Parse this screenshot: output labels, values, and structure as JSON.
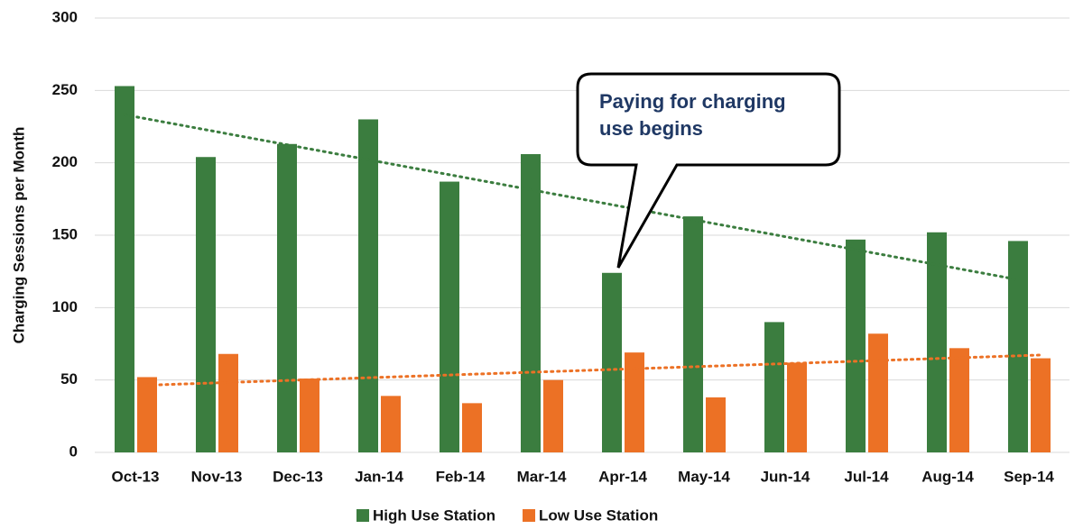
{
  "chart_data": {
    "type": "bar",
    "y_label": "Charging Sessions per Month",
    "categories": [
      "Oct-13",
      "Nov-13",
      "Dec-13",
      "Jan-14",
      "Feb-14",
      "Mar-14",
      "Apr-14",
      "May-14",
      "Jun-14",
      "Jul-14",
      "Aug-14",
      "Sep-14"
    ],
    "series": [
      {
        "name": "High Use Station",
        "color": "#3b7d3f",
        "values": [
          253,
          204,
          213,
          230,
          187,
          206,
          124,
          163,
          90,
          147,
          152,
          146
        ]
      },
      {
        "name": "Low Use Station",
        "color": "#ec7125",
        "values": [
          52,
          68,
          51,
          39,
          34,
          50,
          69,
          38,
          62,
          82,
          72,
          65
        ]
      }
    ],
    "ylim": [
      0,
      300
    ],
    "yticks": [
      0,
      50,
      100,
      150,
      200,
      250,
      300
    ],
    "grid": true,
    "trendline": "linear",
    "legend": "bottom",
    "annotation": "Paying for charging use begins"
  }
}
